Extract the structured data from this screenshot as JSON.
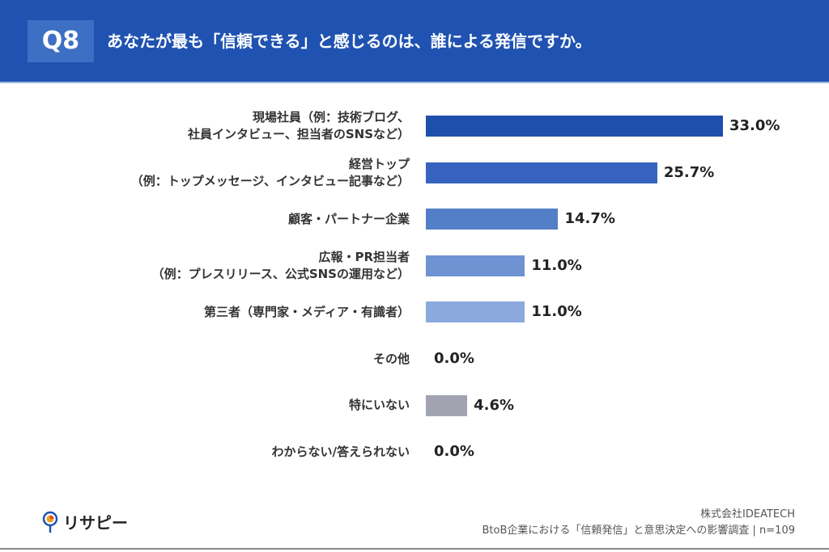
{
  "header": {
    "badge": "Q8",
    "title": "あなたが最も「信頼できる」と感じるのは、誰による発信ですか。",
    "bg_color": "#2053b1"
  },
  "chart_data": {
    "type": "bar",
    "orientation": "horizontal",
    "categories": [
      "現場社員（例：技術ブログ、\n社員インタビュー、担当者のSNSなど）",
      "経営トップ\n（例：トップメッセージ、インタビュー記事など）",
      "顧客・パートナー企業",
      "広報・PR担当者\n（例：プレスリリース、公式SNSの運用など）",
      "第三者（専門家・メディア・有識者）",
      "その他",
      "特にいない",
      "わからない/答えられない"
    ],
    "values": [
      33.0,
      25.7,
      14.7,
      11.0,
      11.0,
      0.0,
      4.6,
      0.0
    ],
    "value_labels": [
      "33.0%",
      "25.7%",
      "14.7%",
      "11.0%",
      "11.0%",
      "0.0%",
      "4.6%",
      "0.0%"
    ],
    "colors": [
      "#1f4fac",
      "#3563be",
      "#537fc8",
      "#6e92d2",
      "#8ba9dc",
      "#8ba9dc",
      "#a1a4b0",
      "#a1a4b0"
    ],
    "xlim": [
      0,
      33
    ],
    "grid": false
  },
  "footer": {
    "logo_text": "リサピー",
    "company": "株式会社IDEATECH",
    "survey": "BtoB企業における「信頼発信」と意思決定への影響調査 | n=109"
  }
}
